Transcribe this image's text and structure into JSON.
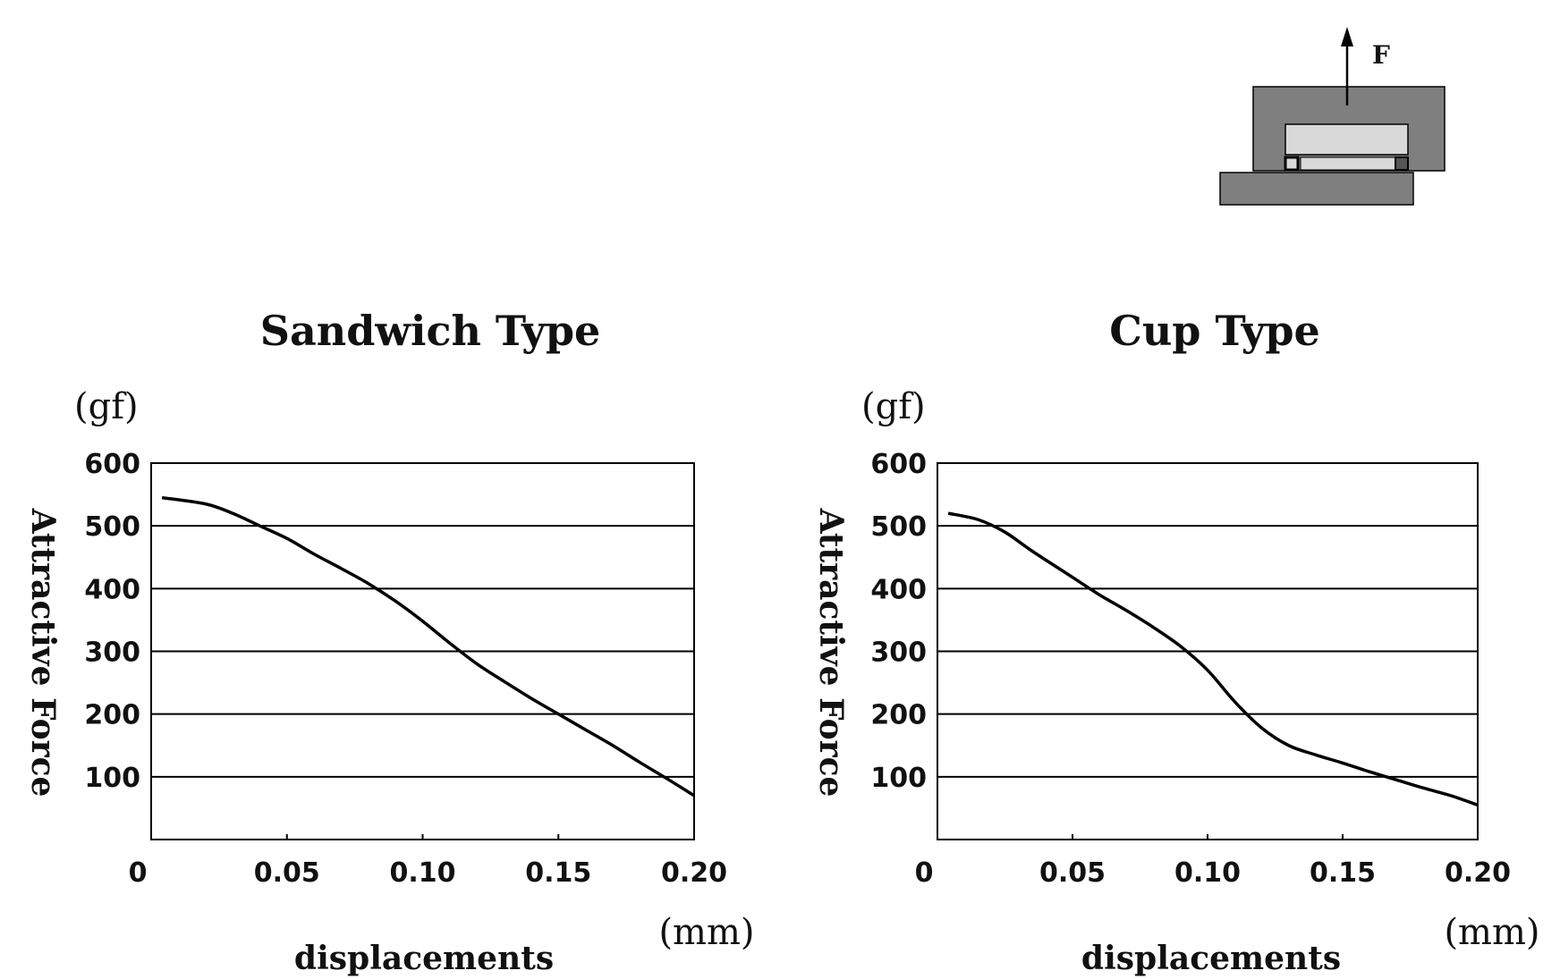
{
  "chart_data": [
    {
      "type": "line",
      "title": "Sandwich Type",
      "xlabel": "displacements",
      "ylabel": "Attractive Force",
      "y_unit": "(gf)",
      "x_unit": "(mm)",
      "xlim": [
        0,
        0.2
      ],
      "ylim": [
        0,
        600
      ],
      "x_ticks": [
        "0",
        "0.05",
        "0.10",
        "0.15",
        "0.20"
      ],
      "y_ticks": [
        "100",
        "200",
        "300",
        "400",
        "500",
        "600"
      ],
      "grid": "horizontal",
      "series": [
        {
          "x": [
            0.004,
            0.02,
            0.03,
            0.04,
            0.05,
            0.06,
            0.07,
            0.08,
            0.09,
            0.1,
            0.11,
            0.12,
            0.13,
            0.14,
            0.15,
            0.16,
            0.17,
            0.18,
            0.19,
            0.2
          ],
          "y": [
            545,
            535,
            520,
            500,
            480,
            455,
            432,
            408,
            380,
            348,
            313,
            280,
            252,
            225,
            200,
            175,
            150,
            123,
            97,
            70
          ]
        }
      ]
    },
    {
      "type": "line",
      "title": "Cup Type",
      "xlabel": "displacements",
      "ylabel": "Attractive Force",
      "y_unit": "(gf)",
      "x_unit": "(mm)",
      "xlim": [
        0,
        0.2
      ],
      "ylim": [
        0,
        600
      ],
      "x_ticks": [
        "0",
        "0.05",
        "0.10",
        "0.15",
        "0.20"
      ],
      "y_ticks": [
        "100",
        "200",
        "300",
        "400",
        "500",
        "600"
      ],
      "grid": "horizontal",
      "series": [
        {
          "x": [
            0.004,
            0.015,
            0.025,
            0.035,
            0.05,
            0.06,
            0.07,
            0.08,
            0.09,
            0.1,
            0.11,
            0.12,
            0.13,
            0.14,
            0.15,
            0.16,
            0.17,
            0.18,
            0.19,
            0.2
          ],
          "y": [
            520,
            510,
            490,
            460,
            418,
            390,
            365,
            338,
            308,
            270,
            220,
            178,
            150,
            135,
            122,
            108,
            95,
            82,
            70,
            55
          ]
        }
      ]
    }
  ],
  "diagram": {
    "force_label": "F",
    "colors": {
      "outer": "#7f7f7f",
      "inner": "#d9d9d9",
      "base": "#7f7f7f",
      "stroke": "#000000"
    }
  }
}
